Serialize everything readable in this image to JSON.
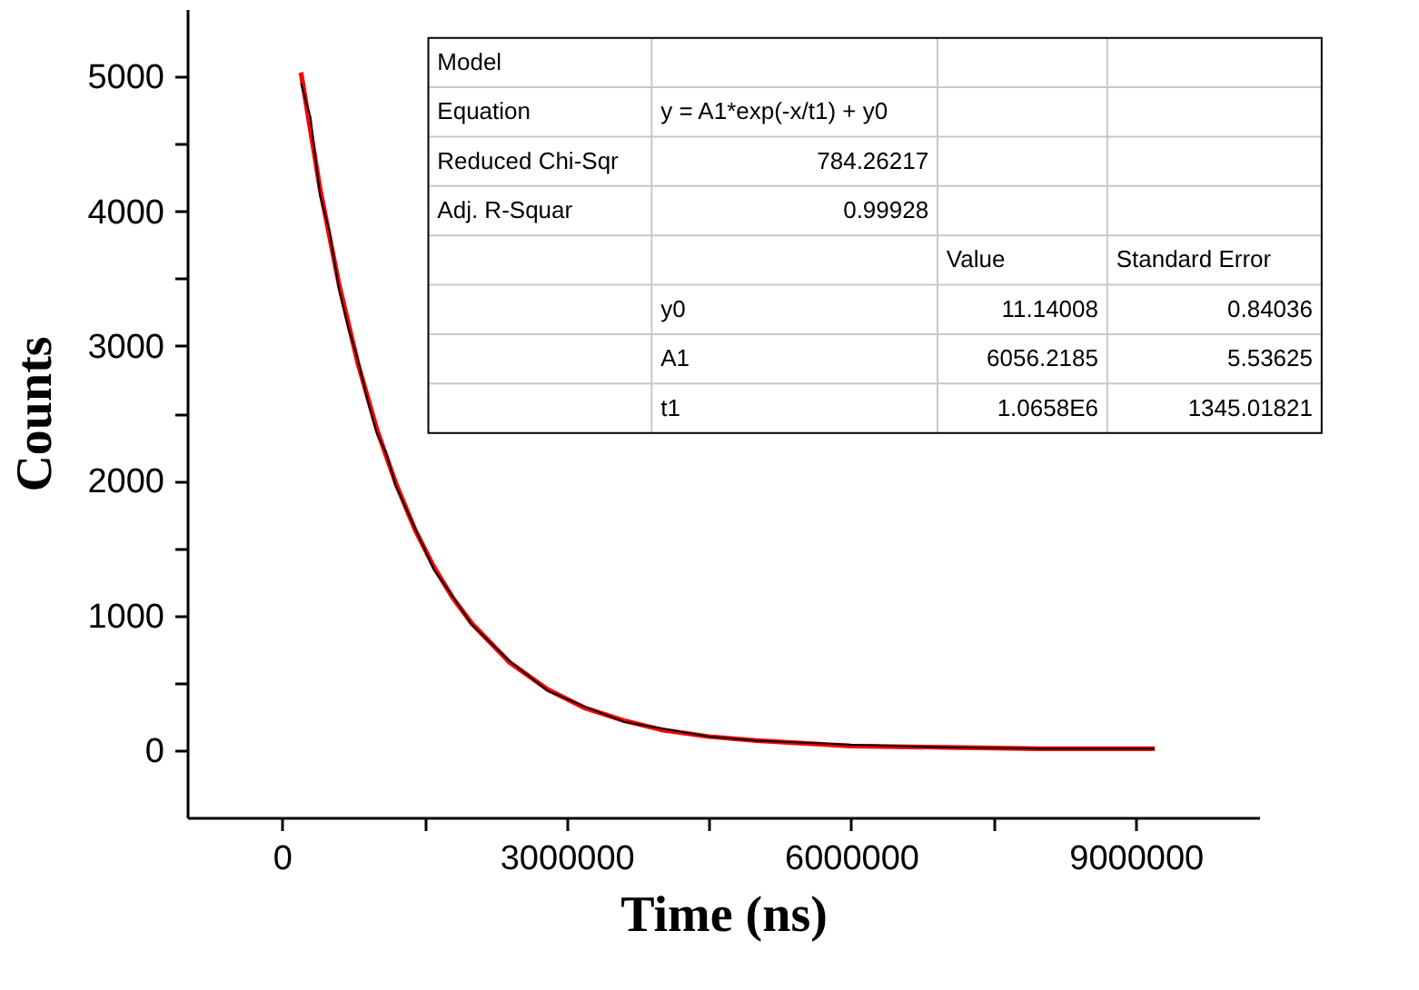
{
  "chart_data": {
    "type": "line",
    "xlabel": "Time (ns)",
    "ylabel": "Counts",
    "xlim": [
      -1000000,
      10300000
    ],
    "xticks": [
      0,
      {
        "value": 1500000,
        "label": null
      },
      3000000,
      {
        "value": 4500000,
        "label": null
      },
      6000000,
      {
        "value": 7500000,
        "label": null
      },
      9000000
    ],
    "ylim": [
      -500,
      5500
    ],
    "yticks": [
      0,
      {
        "value": 500,
        "label": null
      },
      1000,
      {
        "value": 1500,
        "label": null
      },
      2000,
      {
        "value": 2500,
        "label": null
      },
      3000,
      {
        "value": 3500,
        "label": null
      },
      4000,
      {
        "value": 4500,
        "label": null
      },
      5000
    ],
    "grid": false,
    "legend": false,
    "series": [
      {
        "color": "#000000",
        "x": [
          200000,
          250000,
          300000,
          400000,
          500000,
          600000,
          700000,
          800000,
          900000,
          1000000,
          1100000,
          1200000,
          1400000,
          1600000,
          1800000,
          2000000,
          2400000,
          2800000,
          3200000,
          3600000,
          4000000,
          4500000,
          5000000,
          6000000,
          7000000,
          8000000,
          9000000,
          9200000
        ],
        "values": [
          4950,
          4820,
          4700,
          4120,
          3850,
          3420,
          3130,
          2900,
          2600,
          2350,
          2200,
          1960,
          1650,
          1340,
          1140,
          930,
          660,
          440,
          320,
          210,
          160,
          100,
          70,
          40,
          20,
          10,
          10,
          10
        ]
      },
      {
        "color": "#ff0000",
        "x": [
          200000,
          400000,
          600000,
          800000,
          1000000,
          1200000,
          1400000,
          1600000,
          1800000,
          2000000,
          2400000,
          2800000,
          3200000,
          3600000,
          4000000,
          4500000,
          5000000,
          6000000,
          7000000,
          8000000,
          9000000,
          9200000
        ],
        "values": [
          5030,
          4170,
          3460,
          2870,
          2380,
          1980,
          1640,
          1360,
          1130,
          940,
          650,
          450,
          310,
          220,
          150,
          100,
          70,
          30,
          20,
          10,
          10,
          10
        ]
      }
    ],
    "annotations": [
      "Model",
      "Equation",
      "y = A1*exp(-x/t1) + y0",
      "Reduced Chi-Sqr",
      "784.26217",
      "Adj. R-Squar",
      "0.99928",
      "Value",
      "Standard Error",
      "y0",
      "11.14008",
      "0.84036",
      "A1",
      "6056.2185",
      "5.53625",
      "t1",
      "1.0658E6",
      "1345.01821"
    ]
  }
}
